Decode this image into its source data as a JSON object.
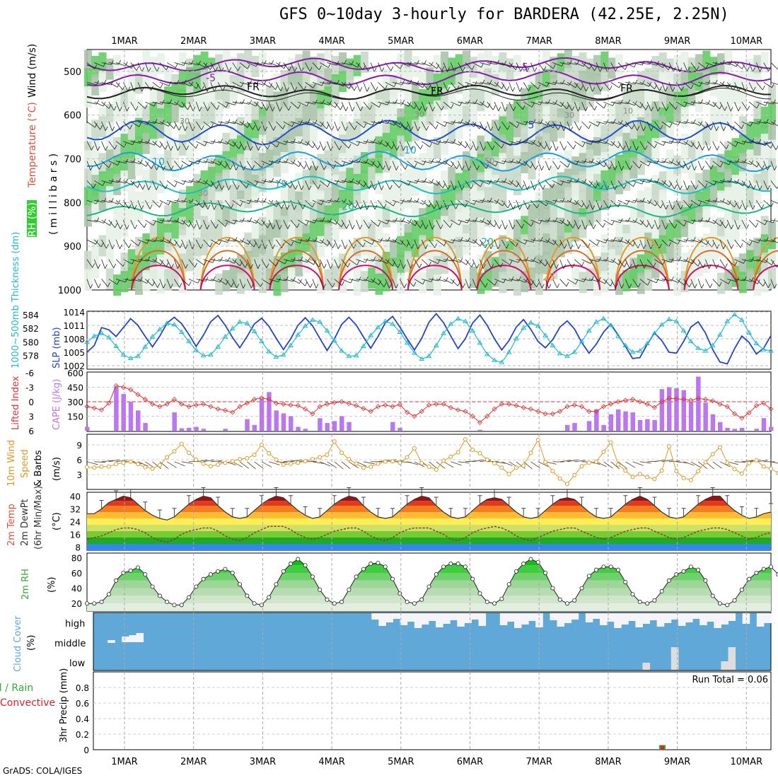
{
  "title": "GFS 0~10day 3-hourly for BARDERA (42.25E, 2.25N)",
  "footer": "GrADS: COLA/IGES",
  "dates": [
    "1MAR",
    "2MAR",
    "3MAR",
    "4MAR",
    "5MAR",
    "6MAR",
    "7MAR",
    "8MAR",
    "9MAR",
    "10MAR"
  ],
  "colors": {
    "rh": "#33cc33",
    "temp": "#e0503c",
    "thick": "#22bbcc",
    "slp": "#2244cc",
    "li": "#dd3333",
    "cape": "#bb77ee",
    "wind": "#e09820",
    "rain": "#33aa33",
    "conv": "#dd2222",
    "cloud": "#5fa8d8"
  },
  "panel_labels": {
    "profile": {
      "rh": "RH (%)",
      "temp": "Temperature (°C)",
      "wind": "Wind (m/s)",
      "mb": "( m i l l i b a r s )"
    },
    "slp": {
      "thick": "1000~500mb Thickness (dm)",
      "slp": "SLP (mb)"
    },
    "cape": {
      "li": "Lifted Index",
      "cape": "CAPE (J/kg)"
    },
    "wind": {
      "a": "10m Wind",
      "b": "Speed",
      "c": "& Barbs",
      "d": "(m/s)"
    },
    "temp": {
      "a": "2m Temp",
      "b": "2m DewPt",
      "c": "(6hr Min/Max)",
      "d": "(°C)"
    },
    "rh": {
      "a": "2m RH",
      "b": "(%)"
    },
    "cloud": {
      "a": "Cloud Cover",
      "b": "(%)",
      "high": "high",
      "middle": "middle",
      "low": "low"
    },
    "precip": {
      "a": "Total / Rain",
      "b": "Convective",
      "c": "3hr Precip (mm)",
      "run_total": "Run Total = 0.06"
    }
  },
  "chart_data": [
    {
      "type": "contour",
      "panel": "vertical profile",
      "y_ticks": [
        "500",
        "600",
        "700",
        "800",
        "900",
        "1000"
      ],
      "contour_labels": [
        "-5",
        "-5",
        "FR",
        "FR",
        "FR",
        "5",
        "10",
        "10",
        "15",
        "15",
        "20",
        "20",
        "25"
      ],
      "rh_labels": [
        "30",
        "30",
        "30",
        "30",
        "50",
        "10"
      ]
    },
    {
      "type": "line",
      "panel": "thickness / slp",
      "thick_ticks": [
        "578",
        "580",
        "582",
        "584"
      ],
      "slp_ticks": [
        "1002",
        "1005",
        "1008",
        "1011",
        "1014"
      ],
      "series": [
        {
          "name": "1000~500mb Thickness (dm)",
          "values": [
            579.5,
            580.4,
            580.8,
            580.2,
            578.9,
            577.6,
            577.1,
            577.4,
            578.8,
            580.3,
            581.4,
            582.3,
            582.1,
            581.0,
            579.6,
            578.3,
            577.5,
            577.6,
            578.8,
            580.3,
            581.5,
            582.5,
            582.3,
            581.1,
            579.6,
            578.1,
            577.3,
            577.6,
            579.0,
            580.6,
            581.9,
            582.8,
            582.5,
            581.2,
            579.7,
            578.2,
            577.4,
            577.5,
            578.9,
            580.5,
            581.7,
            582.6,
            582.2,
            581.0,
            579.4,
            577.9,
            577.0,
            577.4,
            579.0,
            580.8,
            582.2,
            583.0,
            582.6,
            581.2,
            579.4,
            577.7,
            576.8,
            576.5,
            578.0,
            580.0,
            581.6,
            582.4,
            581.9,
            580.5,
            579.0,
            577.8,
            577.4,
            578.0,
            579.6,
            581.2,
            582.5,
            583.0,
            582.0,
            580.4,
            579.0,
            578.0,
            578.2,
            579.3,
            580.8,
            582.1,
            582.9,
            582.6,
            581.2,
            579.6,
            578.6,
            578.2,
            579.0,
            580.6,
            582.6,
            583.6,
            582.8,
            580.9,
            579.3,
            578.4,
            578.2
          ]
        },
        {
          "name": "SLP (mb)",
          "values": [
            1005.0,
            1006.5,
            1010.5,
            1010.0,
            1008.5,
            1010.5,
            1012.5,
            1011.0,
            1008.5,
            1006.2,
            1008.6,
            1011.5,
            1012.8,
            1011.4,
            1009.0,
            1006.3,
            1008.8,
            1011.8,
            1013.2,
            1011.0,
            1008.3,
            1006.0,
            1008.5,
            1011.3,
            1012.6,
            1010.8,
            1008.1,
            1005.6,
            1008.0,
            1011.0,
            1012.7,
            1010.9,
            1008.1,
            1005.4,
            1008.0,
            1011.2,
            1012.8,
            1011.1,
            1008.4,
            1005.9,
            1008.5,
            1011.6,
            1013.0,
            1010.6,
            1008.0,
            1005.5,
            1008.1,
            1011.7,
            1013.6,
            1011.6,
            1008.6,
            1005.8,
            1008.0,
            1011.5,
            1013.3,
            1011.0,
            1008.0,
            1005.5,
            1007.6,
            1010.6,
            1012.3,
            1010.1,
            1007.4,
            1006.0,
            1007.8,
            1010.6,
            1012.0,
            1010.2,
            1007.2,
            1004.8,
            1006.8,
            1009.5,
            1011.3,
            1008.8,
            1006.3,
            1003.6,
            1003.8,
            1006.8,
            1009.3,
            1007.6,
            1005.0,
            1004.8,
            1007.4,
            1010.6,
            1011.8,
            1009.3,
            1005.6,
            1002.8,
            1002.4,
            1005.8,
            1008.6,
            1007.2,
            1004.6,
            1005.9,
            1008.7
          ]
        }
      ]
    },
    {
      "type": "bar",
      "panel": "cape / lifted index",
      "li_ticks": [
        "-6",
        "-3",
        "0",
        "3",
        "6"
      ],
      "cape_ticks": [
        "150",
        "300",
        "450",
        "600"
      ],
      "series": [
        {
          "name": "CAPE (J/kg)",
          "values": [
            40,
            0,
            0,
            0,
            450,
            380,
            300,
            210,
            80,
            0,
            0,
            0,
            190,
            25,
            30,
            40,
            20,
            0,
            0,
            20,
            0,
            0,
            120,
            60,
            330,
            400,
            210,
            180,
            150,
            40,
            20,
            0,
            130,
            80,
            100,
            150,
            90,
            0,
            0,
            0,
            0,
            0,
            90,
            30,
            0,
            0,
            0,
            0,
            0,
            0,
            0,
            0,
            0,
            0,
            10,
            0,
            0,
            0,
            0,
            0,
            0,
            0,
            0,
            0,
            0,
            0,
            60,
            80,
            0,
            100,
            220,
            60,
            170,
            220,
            200,
            190,
            110,
            120,
            110,
            430,
            450,
            440,
            420,
            300,
            560,
            290,
            170,
            90,
            30,
            20,
            30,
            0,
            20,
            130,
            40
          ]
        },
        {
          "name": "Lifted Index",
          "values": [
            1.0,
            1.3,
            1.7,
            0.3,
            -3.3,
            -3.0,
            -2.5,
            -1.5,
            -0.5,
            0.5,
            1.0,
            0.5,
            -0.5,
            0.5,
            1.0,
            0.7,
            0.5,
            1.0,
            1.5,
            1.8,
            2.2,
            1.0,
            0.3,
            -0.5,
            -0.8,
            -0.5,
            0.3,
            0.5,
            0.7,
            0.8,
            1.5,
            2.5,
            1.0,
            0.5,
            0.2,
            0.0,
            0.4,
            0.8,
            1.4,
            2.0,
            1.0,
            0.7,
            1.0,
            0.6,
            2.2,
            3.0,
            2.0,
            0.7,
            0.5,
            0.5,
            1.2,
            1.7,
            2.0,
            3.0,
            4.3,
            3.0,
            1.5,
            0.5,
            0.5,
            0.8,
            1.2,
            1.5,
            2.0,
            2.5,
            2.5,
            2.0,
            1.0,
            0.7,
            1.0,
            2.0,
            2.0,
            1.0,
            0.5,
            0.0,
            -0.3,
            -0.5,
            0.0,
            0.5,
            1.2,
            0.0,
            -0.7,
            -0.6,
            -0.5,
            -0.3,
            -0.7,
            -0.5,
            -0.2,
            0.5,
            1.0,
            2.5,
            3.4,
            2.3,
            0.8,
            0.3,
            1.5
          ]
        }
      ]
    },
    {
      "type": "line",
      "panel": "10m wind speed",
      "ticks": [
        "3",
        "6",
        "9"
      ],
      "series": [
        {
          "name": "10m Wind Speed",
          "values": [
            4.5,
            4.4,
            4.6,
            4.6,
            5.1,
            5.4,
            5.6,
            5.1,
            4.5,
            4.2,
            4.9,
            6.5,
            7.7,
            9.2,
            7.4,
            6.0,
            5.2,
            4.7,
            5.0,
            5.4,
            5.7,
            6.1,
            6.3,
            7.0,
            9.0,
            7.3,
            6.0,
            5.0,
            5.2,
            5.4,
            5.7,
            6.1,
            6.5,
            7.0,
            9.7,
            7.4,
            6.1,
            5.2,
            4.4,
            4.6,
            5.2,
            5.6,
            5.7,
            5.4,
            6.5,
            8.3,
            5.3,
            4.6,
            4.0,
            5.8,
            6.6,
            7.5,
            10.1,
            8.0,
            7.3,
            6.0,
            5.3,
            4.4,
            3.1,
            4.4,
            4.8,
            7.4,
            10.0,
            5.5,
            3.7,
            2.2,
            1.1,
            2.9,
            4.7,
            5.4,
            5.6,
            7.6,
            9.5,
            5.0,
            3.8,
            2.5,
            3.1,
            2.5,
            2.1,
            3.8,
            8.7,
            3.7,
            2.3,
            1.9,
            3.7,
            5.5,
            7.1,
            8.5,
            5.4,
            4.1,
            3.2,
            5.3,
            5.9,
            4.6,
            4.2,
            3.3,
            4.4,
            5.1
          ]
        }
      ]
    },
    {
      "type": "area",
      "panel": "2m temperature",
      "ticks": [
        "8",
        "16",
        "24",
        "32",
        "40"
      ],
      "series": [
        {
          "name": "2m Temp",
          "values": [
            29,
            29,
            32,
            36,
            38,
            40,
            39,
            35,
            31,
            28,
            26,
            25,
            27,
            31,
            35,
            38,
            40,
            39,
            34,
            30,
            27,
            26,
            27,
            31,
            35,
            38,
            40,
            39,
            35,
            31,
            28,
            26,
            27,
            31,
            35,
            38,
            40,
            39,
            34,
            30,
            27,
            26,
            27,
            31,
            35,
            38,
            40,
            39,
            34,
            30,
            27,
            26,
            27,
            31,
            35,
            38,
            39,
            38,
            34,
            30,
            27,
            26,
            27,
            31,
            35,
            38,
            39,
            38,
            34,
            30,
            27,
            26,
            27,
            31,
            35,
            38,
            40,
            38,
            34,
            30,
            27,
            26,
            27,
            31,
            35,
            38,
            40,
            40,
            35,
            31,
            28,
            26,
            27,
            29,
            30
          ]
        },
        {
          "name": "2m DewPt",
          "values": [
            13,
            14,
            15,
            17,
            19,
            20,
            20,
            19,
            17,
            14,
            12,
            11,
            13,
            16,
            18,
            19,
            20,
            20,
            18,
            15,
            13,
            12,
            14,
            17,
            19,
            21,
            21,
            21,
            19,
            16,
            14,
            13,
            14,
            16,
            18,
            19,
            20,
            20,
            18,
            15,
            13,
            12,
            14,
            17,
            19,
            20,
            20,
            20,
            18,
            16,
            13,
            12,
            14,
            17,
            19,
            20,
            21,
            20,
            18,
            15,
            13,
            12,
            14,
            16,
            18,
            19,
            20,
            20,
            18,
            16,
            14,
            13,
            14,
            16,
            18,
            19,
            20,
            20,
            18,
            16,
            14,
            13,
            14,
            16,
            18,
            19,
            20,
            20,
            19,
            17,
            15,
            13,
            14,
            16,
            17
          ]
        }
      ]
    },
    {
      "type": "area",
      "panel": "2m relative humidity",
      "ticks": [
        "20",
        "40",
        "60",
        "80"
      ],
      "series": [
        {
          "name": "2m RH",
          "values": [
            20,
            20,
            22,
            32,
            50,
            60,
            63,
            67,
            58,
            42,
            30,
            22,
            18,
            18,
            28,
            42,
            52,
            58,
            62,
            65,
            60,
            45,
            30,
            20,
            18,
            28,
            45,
            62,
            72,
            78,
            70,
            55,
            38,
            25,
            20,
            22,
            38,
            55,
            65,
            72,
            73,
            68,
            52,
            33,
            22,
            20,
            25,
            42,
            58,
            68,
            72,
            72,
            68,
            52,
            33,
            22,
            20,
            26,
            45,
            62,
            72,
            78,
            74,
            60,
            40,
            25,
            20,
            24,
            40,
            56,
            64,
            68,
            68,
            64,
            48,
            32,
            22,
            20,
            24,
            36,
            50,
            58,
            62,
            68,
            64,
            50,
            30,
            20,
            18,
            24,
            38,
            52,
            60,
            65,
            68,
            58,
            40,
            24,
            20
          ]
        }
      ]
    },
    {
      "type": "heatmap",
      "panel": "cloud cover",
      "rows": [
        "high",
        "middle",
        "low"
      ]
    },
    {
      "type": "bar",
      "panel": "3hr precipitation",
      "ticks": [
        "0",
        "0.2",
        "0.4",
        "0.6",
        "0.8"
      ],
      "run_total": 0.06,
      "series": [
        {
          "name": "Total / Rain",
          "values": [
            0.06
          ]
        },
        {
          "name": "Convective",
          "values": [
            0.05
          ]
        }
      ]
    }
  ]
}
